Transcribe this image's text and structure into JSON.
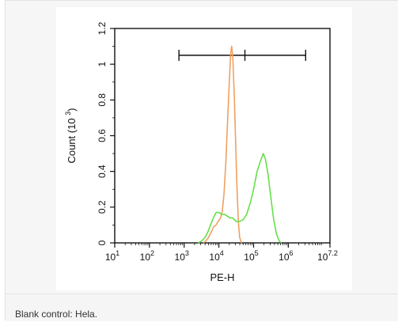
{
  "caption": "Blank control: Hela.",
  "chart_data": {
    "type": "line",
    "xlabel": "PE-H",
    "ylabel": "Count (10 3)",
    "ylabel_main": "Count (10",
    "ylabel_exp": "3",
    "ylabel_close": ")",
    "xscale": "log",
    "xlim": [
      1,
      7.2
    ],
    "ylim": [
      0,
      1.2
    ],
    "x_ticks": [
      {
        "base": "10",
        "exp": "1",
        "value": 1
      },
      {
        "base": "10",
        "exp": "2",
        "value": 2
      },
      {
        "base": "10",
        "exp": "3",
        "value": 3
      },
      {
        "base": "10",
        "exp": "4",
        "value": 4
      },
      {
        "base": "10",
        "exp": "5",
        "value": 5
      },
      {
        "base": "10",
        "exp": "6",
        "value": 6
      },
      {
        "base": "10",
        "exp": "7.2",
        "value": 7.2
      }
    ],
    "y_ticks": [
      {
        "label": "0",
        "value": 0
      },
      {
        "label": "0.2",
        "value": 0.2
      },
      {
        "label": "0.4",
        "value": 0.4
      },
      {
        "label": "0.6",
        "value": 0.6
      },
      {
        "label": "0.8",
        "value": 0.8
      },
      {
        "label": "1",
        "value": 1.0
      },
      {
        "label": "1.2",
        "value": 1.2
      }
    ],
    "gate": {
      "y": 1.05,
      "x_start": 2.85,
      "x_mid": 4.75,
      "x_end": 6.5
    },
    "series": [
      {
        "color": "#f0a060",
        "points": [
          [
            3.55,
            0
          ],
          [
            3.62,
            0.01
          ],
          [
            3.7,
            0.03
          ],
          [
            3.78,
            0.06
          ],
          [
            3.85,
            0.09
          ],
          [
            3.92,
            0.1
          ],
          [
            3.98,
            0.12
          ],
          [
            4.05,
            0.14
          ],
          [
            4.1,
            0.18
          ],
          [
            4.15,
            0.28
          ],
          [
            4.2,
            0.45
          ],
          [
            4.25,
            0.68
          ],
          [
            4.3,
            0.9
          ],
          [
            4.34,
            1.06
          ],
          [
            4.37,
            1.1
          ],
          [
            4.4,
            1.04
          ],
          [
            4.44,
            0.85
          ],
          [
            4.48,
            0.58
          ],
          [
            4.52,
            0.32
          ],
          [
            4.56,
            0.12
          ],
          [
            4.6,
            0.03
          ],
          [
            4.65,
            0
          ]
        ]
      },
      {
        "color": "#66e04a",
        "points": [
          [
            3.4,
            0
          ],
          [
            3.5,
            0.01
          ],
          [
            3.6,
            0.03
          ],
          [
            3.68,
            0.06
          ],
          [
            3.76,
            0.1
          ],
          [
            3.84,
            0.14
          ],
          [
            3.92,
            0.17
          ],
          [
            4.0,
            0.17
          ],
          [
            4.08,
            0.16
          ],
          [
            4.16,
            0.16
          ],
          [
            4.24,
            0.15
          ],
          [
            4.32,
            0.14
          ],
          [
            4.4,
            0.14
          ],
          [
            4.5,
            0.12
          ],
          [
            4.6,
            0.12
          ],
          [
            4.7,
            0.13
          ],
          [
            4.8,
            0.16
          ],
          [
            4.9,
            0.22
          ],
          [
            5.0,
            0.3
          ],
          [
            5.1,
            0.4
          ],
          [
            5.2,
            0.46
          ],
          [
            5.28,
            0.5
          ],
          [
            5.34,
            0.47
          ],
          [
            5.42,
            0.38
          ],
          [
            5.5,
            0.25
          ],
          [
            5.58,
            0.13
          ],
          [
            5.66,
            0.05
          ],
          [
            5.74,
            0.01
          ],
          [
            5.8,
            0
          ]
        ]
      }
    ],
    "grid": false
  }
}
